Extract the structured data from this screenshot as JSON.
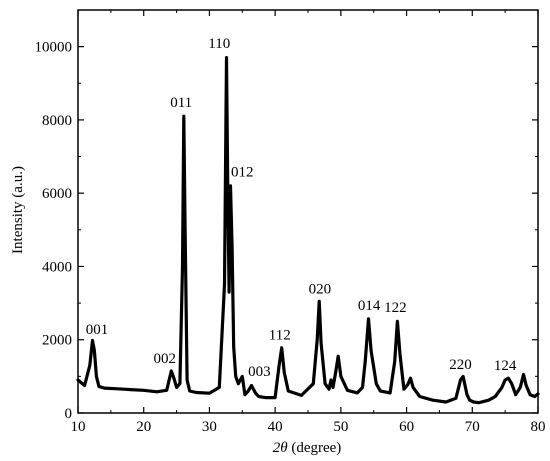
{
  "chart_data": {
    "type": "line",
    "title": "",
    "xlabel_symbol": "2θ",
    "xlabel_unit": " (degree)",
    "ylabel": "Intensity (a.u.)",
    "xlim": [
      10,
      80
    ],
    "ylim": [
      0,
      11000
    ],
    "x_ticks": [
      10,
      20,
      30,
      40,
      50,
      60,
      70,
      80
    ],
    "y_ticks": [
      0,
      2000,
      4000,
      6000,
      8000,
      10000
    ],
    "grid": false,
    "legend": "none",
    "line_color": "#000000",
    "series": [
      {
        "x": [
          10,
          11,
          11.8,
          12.2,
          12.5,
          12.8,
          13.2,
          14,
          16,
          18,
          20,
          22,
          23.5,
          24.2,
          24.6,
          25,
          25.5,
          25.9,
          26.1,
          26.3,
          26.6,
          27,
          28,
          30,
          31.5,
          32.3,
          32.6,
          32.8,
          33.0,
          33.2,
          33.45,
          33.7,
          34.0,
          34.4,
          35,
          35.4,
          35.9,
          36.4,
          37.0,
          37.5,
          38.5,
          40,
          40.6,
          41.0,
          41.4,
          42,
          44,
          45.8,
          46.4,
          46.7,
          47.0,
          47.6,
          48.2,
          48.5,
          48.8,
          49.2,
          49.6,
          50.0,
          51,
          52.5,
          53.3,
          53.7,
          54.2,
          54.6,
          55.0,
          55.4,
          56,
          57.5,
          58.2,
          58.6,
          59.0,
          59.6,
          60.2,
          60.6,
          61.0,
          62,
          64,
          66,
          67.5,
          68.2,
          68.6,
          69.2,
          69.6,
          70.2,
          71,
          72.5,
          73.5,
          74.5,
          75.0,
          75.5,
          76.0,
          76.6,
          77.3,
          77.8,
          78.2,
          78.8,
          79.5,
          80
        ],
        "y": [
          900,
          750,
          1300,
          1980,
          1700,
          1000,
          720,
          680,
          660,
          640,
          620,
          580,
          620,
          1150,
          950,
          700,
          800,
          4000,
          8100,
          5000,
          900,
          600,
          560,
          540,
          700,
          3500,
          9700,
          6000,
          3300,
          6200,
          4500,
          1800,
          1000,
          800,
          1000,
          500,
          600,
          750,
          550,
          450,
          420,
          420,
          1300,
          1780,
          1100,
          600,
          480,
          800,
          2000,
          3050,
          1900,
          800,
          650,
          900,
          700,
          1100,
          1550,
          1000,
          620,
          550,
          700,
          1400,
          2570,
          1700,
          1250,
          800,
          600,
          550,
          1400,
          2500,
          1600,
          650,
          780,
          950,
          700,
          450,
          350,
          300,
          400,
          900,
          1000,
          500,
          350,
          300,
          280,
          350,
          450,
          700,
          900,
          950,
          800,
          500,
          700,
          1050,
          750,
          500,
          450,
          520
        ]
      }
    ],
    "annotations": [
      {
        "text": "001",
        "x": 12.9,
        "y": 2050
      },
      {
        "text": "002",
        "x": 23.2,
        "y": 1250
      },
      {
        "text": "011",
        "x": 25.7,
        "y": 8250
      },
      {
        "text": "110",
        "x": 31.5,
        "y": 9850
      },
      {
        "text": "012",
        "x": 35.0,
        "y": 6350
      },
      {
        "text": "003",
        "x": 37.6,
        "y": 900
      },
      {
        "text": "112",
        "x": 40.7,
        "y": 1900
      },
      {
        "text": "020",
        "x": 46.8,
        "y": 3150
      },
      {
        "text": "014",
        "x": 54.3,
        "y": 2700
      },
      {
        "text": "122",
        "x": 58.3,
        "y": 2650
      },
      {
        "text": "220",
        "x": 68.2,
        "y": 1090
      },
      {
        "text": "124",
        "x": 75.0,
        "y": 1060
      }
    ]
  }
}
